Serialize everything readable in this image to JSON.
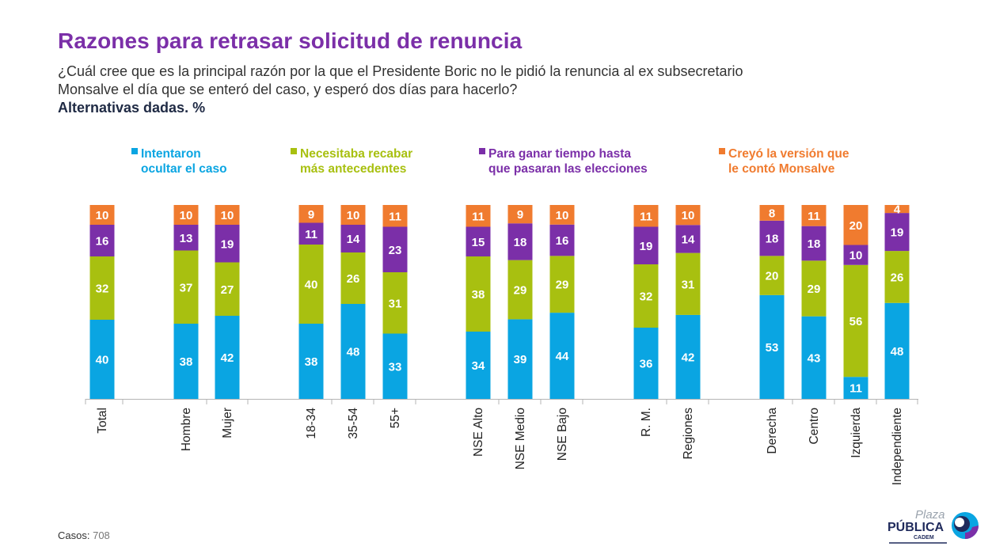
{
  "header": {
    "title": "Razones para retrasar solicitud de renuncia",
    "subtitle": "¿Cuál cree que es la principal razón por la que el Presidente Boric no le pidió la renuncia al ex subsecretario Monsalve el día que se enteró del caso, y esperó dos días para hacerlo?",
    "note": "Alternativas dadas. %"
  },
  "footer": {
    "casos_label": "Casos:",
    "casos_value": "708"
  },
  "logo": {
    "line1": "Plaza",
    "line2": "PÚBLICA",
    "line3": "CADEM"
  },
  "chart_data": {
    "type": "bar",
    "stacked": true,
    "legend_position": "top",
    "grid": false,
    "categories": [
      "Total",
      "Hombre",
      "Mujer",
      "18-34",
      "35-54",
      "55+",
      "NSE Alto",
      "NSE Medio",
      "NSE Bajo",
      "R. M.",
      "Regiones",
      "Derecha",
      "Centro",
      "Izquierda",
      "Independiente"
    ],
    "series": [
      {
        "name": "Intentaron ocultar el caso",
        "legend_lines": [
          "Intentaron",
          "ocultar el caso"
        ],
        "color": "#0aa5e2",
        "values": [
          40,
          38,
          42,
          38,
          48,
          33,
          34,
          39,
          44,
          36,
          42,
          53,
          43,
          11,
          48
        ]
      },
      {
        "name": "Necesitaba recabar más antecedentes",
        "legend_lines": [
          "Necesitaba recabar",
          "más antecedentes"
        ],
        "color": "#a8c010",
        "values": [
          32,
          37,
          27,
          40,
          26,
          31,
          38,
          29,
          29,
          32,
          31,
          20,
          29,
          56,
          26
        ]
      },
      {
        "name": "Para ganar tiempo hasta que pasaran las elecciones",
        "legend_lines": [
          "Para ganar tiempo hasta",
          "que pasaran las elecciones"
        ],
        "color": "#7b2fa8",
        "values": [
          16,
          13,
          19,
          11,
          14,
          23,
          15,
          18,
          16,
          19,
          14,
          18,
          18,
          10,
          19
        ]
      },
      {
        "name": "Creyó la versión que le contó Monsalve",
        "legend_lines": [
          "Creyó la versión que",
          "le contó Monsalve"
        ],
        "color": "#f07b2f",
        "values": [
          10,
          10,
          10,
          9,
          10,
          11,
          11,
          9,
          10,
          11,
          10,
          8,
          11,
          20,
          4
        ]
      }
    ]
  }
}
